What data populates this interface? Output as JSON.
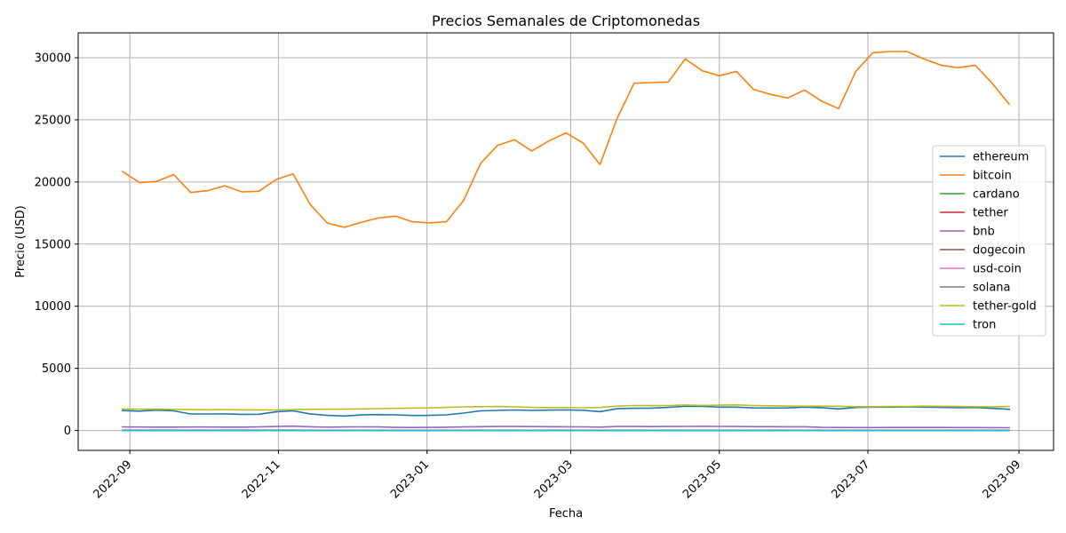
{
  "chart_data": {
    "type": "line",
    "title": "Precios Semanales de Criptomonedas",
    "xlabel": "Fecha",
    "ylabel": "Precio (USD)",
    "x_tick_labels": [
      "2022-09",
      "2022-11",
      "2023-01",
      "2023-03",
      "2023-05",
      "2023-07",
      "2023-09"
    ],
    "y_tick_labels": [
      "0",
      "5000",
      "10000",
      "15000",
      "20000",
      "25000",
      "30000"
    ],
    "ylim": [
      -1600,
      32000
    ],
    "grid": true,
    "legend_position": "center-right",
    "x": [
      "2022-08-29",
      "2022-09-05",
      "2022-09-12",
      "2022-09-19",
      "2022-09-26",
      "2022-10-03",
      "2022-10-10",
      "2022-10-17",
      "2022-10-24",
      "2022-10-31",
      "2022-11-07",
      "2022-11-14",
      "2022-11-21",
      "2022-11-28",
      "2022-12-05",
      "2022-12-12",
      "2022-12-19",
      "2022-12-26",
      "2023-01-02",
      "2023-01-09",
      "2023-01-16",
      "2023-01-23",
      "2023-01-30",
      "2023-02-06",
      "2023-02-13",
      "2023-02-20",
      "2023-02-27",
      "2023-03-06",
      "2023-03-13",
      "2023-03-20",
      "2023-03-27",
      "2023-04-03",
      "2023-04-10",
      "2023-04-17",
      "2023-04-24",
      "2023-05-01",
      "2023-05-08",
      "2023-05-15",
      "2023-05-22",
      "2023-05-29",
      "2023-06-05",
      "2023-06-12",
      "2023-06-19",
      "2023-06-26",
      "2023-07-03",
      "2023-07-10",
      "2023-07-17",
      "2023-07-24",
      "2023-07-31",
      "2023-08-07",
      "2023-08-14",
      "2023-08-21",
      "2023-08-28"
    ],
    "series": [
      {
        "name": "ethereum",
        "color": "#1f77b4",
        "values": [
          1600,
          1560,
          1640,
          1580,
          1330,
          1330,
          1340,
          1300,
          1310,
          1500,
          1580,
          1340,
          1220,
          1170,
          1250,
          1280,
          1260,
          1210,
          1220,
          1260,
          1400,
          1580,
          1620,
          1650,
          1620,
          1640,
          1650,
          1630,
          1520,
          1750,
          1790,
          1800,
          1860,
          1950,
          1940,
          1880,
          1880,
          1820,
          1810,
          1820,
          1880,
          1840,
          1740,
          1850,
          1880,
          1880,
          1900,
          1880,
          1860,
          1840,
          1850,
          1780,
          1700
        ]
      },
      {
        "name": "bitcoin",
        "color": "#ff7f0e",
        "values": [
          20850,
          19950,
          20050,
          20600,
          19150,
          19300,
          19700,
          19200,
          19250,
          20200,
          20650,
          18200,
          16700,
          16350,
          16750,
          17100,
          17250,
          16800,
          16700,
          16800,
          18500,
          21500,
          22950,
          23400,
          22500,
          23300,
          23950,
          23150,
          21400,
          25100,
          27950,
          28000,
          28050,
          29900,
          28950,
          28550,
          28900,
          27450,
          27050,
          26750,
          27400,
          26500,
          25900,
          28900,
          30400,
          30500,
          30500,
          29900,
          29400,
          29200,
          29400,
          27950,
          26250
        ]
      },
      {
        "name": "cardano",
        "color": "#2ca02c",
        "values": [
          0.45,
          0.47,
          0.48,
          0.45,
          0.43,
          0.43,
          0.42,
          0.37,
          0.36,
          0.41,
          0.4,
          0.33,
          0.31,
          0.31,
          0.32,
          0.3,
          0.26,
          0.25,
          0.25,
          0.3,
          0.33,
          0.36,
          0.39,
          0.4,
          0.38,
          0.39,
          0.37,
          0.34,
          0.32,
          0.36,
          0.37,
          0.38,
          0.39,
          0.42,
          0.4,
          0.39,
          0.38,
          0.36,
          0.36,
          0.37,
          0.34,
          0.27,
          0.26,
          0.28,
          0.29,
          0.29,
          0.31,
          0.31,
          0.3,
          0.29,
          0.29,
          0.27,
          0.26
        ]
      },
      {
        "name": "tether",
        "color": "#d62728",
        "values": [
          1,
          1,
          1,
          1,
          1,
          1,
          1,
          1,
          1,
          1,
          1,
          1,
          1,
          1,
          1,
          1,
          1,
          1,
          1,
          1,
          1,
          1,
          1,
          1,
          1,
          1,
          1,
          1,
          1,
          1,
          1,
          1,
          1,
          1,
          1,
          1,
          1,
          1,
          1,
          1,
          1,
          1,
          1,
          1,
          1,
          1,
          1,
          1,
          1,
          1,
          1,
          1,
          1
        ]
      },
      {
        "name": "bnb",
        "color": "#9467bd",
        "values": [
          285,
          280,
          275,
          275,
          280,
          280,
          275,
          270,
          285,
          320,
          350,
          300,
          270,
          290,
          295,
          285,
          250,
          245,
          250,
          265,
          290,
          310,
          320,
          320,
          315,
          310,
          300,
          295,
          270,
          320,
          320,
          315,
          320,
          330,
          340,
          330,
          320,
          310,
          310,
          305,
          300,
          250,
          245,
          240,
          240,
          245,
          245,
          245,
          245,
          240,
          240,
          230,
          220
        ]
      },
      {
        "name": "dogecoin",
        "color": "#8c564b",
        "values": [
          0.06,
          0.06,
          0.06,
          0.06,
          0.06,
          0.06,
          0.06,
          0.06,
          0.08,
          0.13,
          0.11,
          0.08,
          0.08,
          0.09,
          0.09,
          0.09,
          0.07,
          0.07,
          0.07,
          0.08,
          0.08,
          0.09,
          0.09,
          0.09,
          0.08,
          0.08,
          0.08,
          0.07,
          0.07,
          0.08,
          0.08,
          0.08,
          0.09,
          0.09,
          0.08,
          0.08,
          0.07,
          0.07,
          0.07,
          0.07,
          0.07,
          0.06,
          0.06,
          0.07,
          0.07,
          0.07,
          0.07,
          0.08,
          0.08,
          0.08,
          0.07,
          0.06,
          0.06
        ]
      },
      {
        "name": "usd-coin",
        "color": "#e377c2",
        "values": [
          1,
          1,
          1,
          1,
          1,
          1,
          1,
          1,
          1,
          1,
          1,
          1,
          1,
          1,
          1,
          1,
          1,
          1,
          1,
          1,
          1,
          1,
          1,
          1,
          1,
          1,
          1,
          1,
          1,
          1,
          1,
          1,
          1,
          1,
          1,
          1,
          1,
          1,
          1,
          1,
          1,
          1,
          1,
          1,
          1,
          1,
          1,
          1,
          1,
          1,
          1,
          1,
          1
        ]
      },
      {
        "name": "solana",
        "color": "#7f7f7f",
        "values": [
          32,
          32,
          33,
          32,
          33,
          33,
          31,
          30,
          31,
          33,
          28,
          15,
          14,
          14,
          14,
          13,
          11,
          10,
          10,
          14,
          22,
          23,
          24,
          22,
          21,
          22,
          22,
          21,
          19,
          21,
          21,
          20,
          21,
          23,
          22,
          22,
          21,
          20,
          20,
          20,
          20,
          16,
          16,
          18,
          19,
          20,
          25,
          24,
          24,
          23,
          22,
          20,
          20
        ]
      },
      {
        "name": "tether-gold",
        "color": "#bcbd22",
        "values": [
          1730,
          1720,
          1720,
          1700,
          1680,
          1670,
          1680,
          1660,
          1660,
          1650,
          1680,
          1700,
          1720,
          1720,
          1740,
          1760,
          1780,
          1800,
          1820,
          1860,
          1900,
          1920,
          1930,
          1900,
          1860,
          1840,
          1840,
          1830,
          1850,
          1960,
          2010,
          2000,
          2010,
          2050,
          2020,
          2040,
          2060,
          2020,
          1990,
          1970,
          1960,
          1960,
          1950,
          1920,
          1920,
          1930,
          1940,
          1960,
          1950,
          1930,
          1920,
          1910,
          1930
        ]
      },
      {
        "name": "tron",
        "color": "#17becf",
        "values": [
          0.06,
          0.06,
          0.06,
          0.06,
          0.06,
          0.06,
          0.06,
          0.06,
          0.06,
          0.06,
          0.06,
          0.05,
          0.05,
          0.05,
          0.05,
          0.05,
          0.05,
          0.05,
          0.05,
          0.06,
          0.06,
          0.06,
          0.06,
          0.06,
          0.06,
          0.07,
          0.07,
          0.06,
          0.06,
          0.06,
          0.06,
          0.06,
          0.07,
          0.07,
          0.07,
          0.07,
          0.07,
          0.07,
          0.07,
          0.07,
          0.08,
          0.08,
          0.08,
          0.07,
          0.07,
          0.08,
          0.08,
          0.08,
          0.08,
          0.08,
          0.08,
          0.08,
          0.08
        ]
      }
    ]
  }
}
